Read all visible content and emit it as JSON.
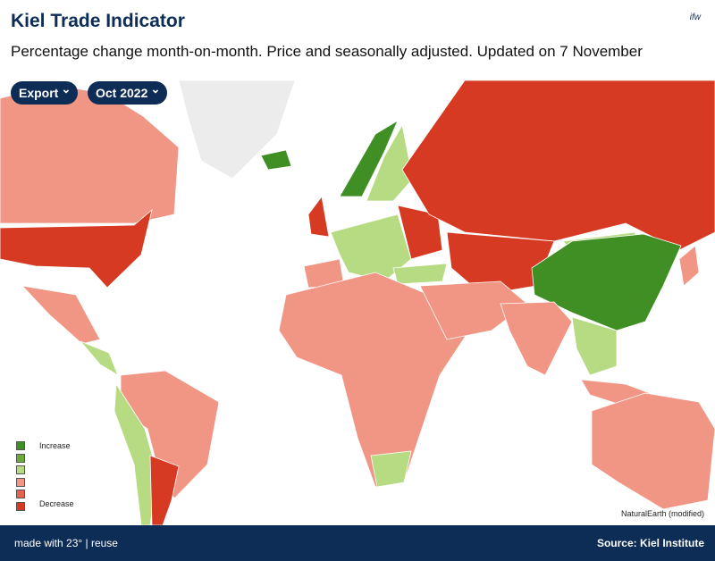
{
  "header": {
    "title": "Kiel Trade Indicator",
    "subtitle": "Percentage change month-on-month. Price and seasonally adjusted. Updated on 7 November",
    "logo": "ifw"
  },
  "controls": {
    "flow": "Export",
    "month": "Oct 2022"
  },
  "legend": {
    "top_label": "Increase",
    "bottom_label": "Decrease",
    "colors": [
      "#3f8f24",
      "#6aaa3c",
      "#b6db83",
      "#f19684",
      "#e8634e",
      "#d63a22"
    ]
  },
  "attribution": "NaturalEarth (modified)",
  "footer": {
    "left": "made with 23° | reuse",
    "right": "Source: Kiel Institute"
  }
}
